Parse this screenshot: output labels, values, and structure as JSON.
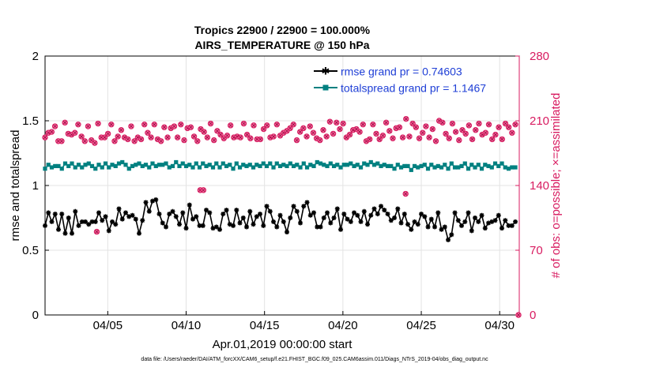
{
  "chart_data": {
    "type": "line",
    "title_line1": "Tropics 22900 / 22900 = 100.000%",
    "title_line2": "AIRS_TEMPERATURE @ 150 hPa",
    "xlabel": "Apr.01,2019 00:00:00 start",
    "ylabel_left": "rmse and totalspread",
    "ylabel_right": "# of obs: o=possible; ×=assimilated",
    "footer": "data file: /Users/raeder/DAI/ATM_forcXX/CAM6_setup/f.e21.FHIST_BGC.f09_025.CAM6assim.011/Diags_NTrS_2019-04/obs_diag_output.nc",
    "xlim": [
      1.0,
      31.25
    ],
    "x_ticks": [
      5,
      10,
      15,
      20,
      25,
      30
    ],
    "x_tick_labels": [
      "04/05",
      "04/10",
      "04/15",
      "04/20",
      "04/25",
      "04/30"
    ],
    "ylim_left": [
      0,
      2
    ],
    "y_ticks_left": [
      "0",
      "0.5",
      "1",
      "1.5",
      "2"
    ],
    "ylim_right": [
      0,
      280
    ],
    "y_ticks_right": [
      "0",
      "70",
      "140",
      "210",
      "280"
    ],
    "grid": true,
    "legend_position": "top-right",
    "colors": {
      "rmse": "#000000",
      "spread": "#008080",
      "obs": "#d81b60",
      "right_axis": "#d81b60"
    },
    "series": [
      {
        "name": "rmse grand pr = 0.74603",
        "axis": "left",
        "values": [
          0.69,
          0.79,
          0.72,
          0.78,
          0.66,
          0.78,
          0.63,
          0.75,
          0.63,
          0.8,
          0.69,
          0.72,
          0.72,
          0.7,
          0.72,
          0.72,
          0.79,
          0.73,
          0.76,
          0.65,
          0.72,
          0.7,
          0.82,
          0.74,
          0.79,
          0.76,
          0.77,
          0.74,
          0.63,
          0.73,
          0.87,
          0.8,
          0.88,
          0.89,
          0.78,
          0.71,
          0.68,
          0.78,
          0.8,
          0.76,
          0.7,
          0.79,
          0.67,
          0.85,
          0.74,
          0.76,
          0.69,
          0.69,
          0.81,
          0.79,
          0.67,
          0.68,
          0.66,
          0.78,
          0.81,
          0.7,
          0.69,
          0.81,
          0.71,
          0.75,
          0.68,
          0.8,
          0.7,
          0.76,
          0.78,
          0.69,
          0.84,
          0.8,
          0.72,
          0.68,
          0.77,
          0.72,
          0.64,
          0.75,
          0.84,
          0.8,
          0.71,
          0.84,
          0.87,
          0.77,
          0.79,
          0.68,
          0.68,
          0.75,
          0.79,
          0.71,
          0.75,
          0.82,
          0.66,
          0.78,
          0.74,
          0.72,
          0.79,
          0.77,
          0.72,
          0.8,
          0.7,
          0.77,
          0.82,
          0.78,
          0.84,
          0.81,
          0.78,
          0.73,
          0.75,
          0.82,
          0.71,
          0.78,
          0.7,
          0.66,
          0.72,
          0.7,
          0.78,
          0.76,
          0.68,
          0.74,
          0.68,
          0.79,
          0.66,
          0.68,
          0.58,
          0.62,
          0.79,
          0.73,
          0.69,
          0.72,
          0.79,
          0.65,
          0.75,
          0.72,
          0.77,
          0.67,
          0.71,
          0.72,
          0.73,
          0.77,
          0.67,
          0.73,
          0.69,
          0.69,
          0.72
        ]
      },
      {
        "name": "totalspread grand pr = 1.1467",
        "axis": "left",
        "values": [
          1.13,
          1.16,
          1.14,
          1.15,
          1.15,
          1.13,
          1.17,
          1.15,
          1.17,
          1.14,
          1.16,
          1.14,
          1.16,
          1.17,
          1.15,
          1.13,
          1.16,
          1.14,
          1.17,
          1.14,
          1.16,
          1.15,
          1.17,
          1.18,
          1.16,
          1.13,
          1.15,
          1.16,
          1.17,
          1.15,
          1.16,
          1.14,
          1.17,
          1.15,
          1.16,
          1.16,
          1.17,
          1.14,
          1.15,
          1.18,
          1.15,
          1.17,
          1.15,
          1.16,
          1.14,
          1.17,
          1.14,
          1.17,
          1.15,
          1.16,
          1.14,
          1.17,
          1.14,
          1.17,
          1.15,
          1.16,
          1.13,
          1.17,
          1.14,
          1.16,
          1.15,
          1.16,
          1.14,
          1.16,
          1.15,
          1.17,
          1.15,
          1.17,
          1.14,
          1.17,
          1.15,
          1.16,
          1.15,
          1.17,
          1.15,
          1.16,
          1.14,
          1.17,
          1.14,
          1.16,
          1.15,
          1.18,
          1.17,
          1.16,
          1.15,
          1.17,
          1.15,
          1.16,
          1.14,
          1.16,
          1.16,
          1.17,
          1.15,
          1.16,
          1.14,
          1.17,
          1.16,
          1.18,
          1.16,
          1.17,
          1.15,
          1.16,
          1.15,
          1.15,
          1.13,
          1.16,
          1.14,
          1.15,
          1.15,
          1.12,
          1.15,
          1.14,
          1.15,
          1.16,
          1.13,
          1.16,
          1.14,
          1.15,
          1.14,
          1.16,
          1.13,
          1.17,
          1.14,
          1.14,
          1.15,
          1.17,
          1.13,
          1.16,
          1.14,
          1.16,
          1.13,
          1.16,
          1.15,
          1.14,
          1.17,
          1.15,
          1.17,
          1.14,
          1.13,
          1.14,
          1.14
        ]
      },
      {
        "name": "# of obs possible / assimilated",
        "axis": "right",
        "values": [
          192,
          197,
          198,
          204,
          188,
          188,
          208,
          196,
          195,
          197,
          206,
          193,
          188,
          204,
          189,
          186,
          207,
          192,
          192,
          196,
          206,
          188,
          193,
          200,
          192,
          190,
          204,
          188,
          192,
          190,
          206,
          197,
          192,
          206,
          190,
          188,
          203,
          192,
          202,
          204,
          192,
          206,
          189,
          202,
          203,
          193,
          188,
          201,
          198,
          192,
          207,
          189,
          199,
          195,
          191,
          194,
          205,
          192,
          193,
          192,
          207,
          195,
          191,
          205,
          190,
          190,
          201,
          205,
          192,
          193,
          206,
          194,
          197,
          199,
          202,
          206,
          189,
          198,
          202,
          193,
          204,
          197,
          191,
          189,
          200,
          193,
          209,
          196,
          208,
          201,
          207,
          192,
          195,
          200,
          201,
          198,
          206,
          188,
          190,
          206,
          196,
          190,
          194,
          208,
          199,
          191,
          202,
          203,
          192,
          212,
          193,
          207,
          203,
          191,
          197,
          204,
          192,
          201,
          188,
          210,
          208,
          196,
          191,
          207,
          198,
          189,
          200,
          196,
          205,
          190,
          200,
          207,
          195,
          197,
          206,
          190,
          195,
          203,
          190,
          207,
          203,
          197,
          206
        ],
        "outliers": [
          {
            "x": 4.3,
            "y": 90
          },
          {
            "x": 10.9,
            "y": 135
          },
          {
            "x": 11.1,
            "y": 135
          },
          {
            "x": 24.0,
            "y": 131
          },
          {
            "x": 31.2,
            "y": 0
          }
        ]
      }
    ]
  }
}
